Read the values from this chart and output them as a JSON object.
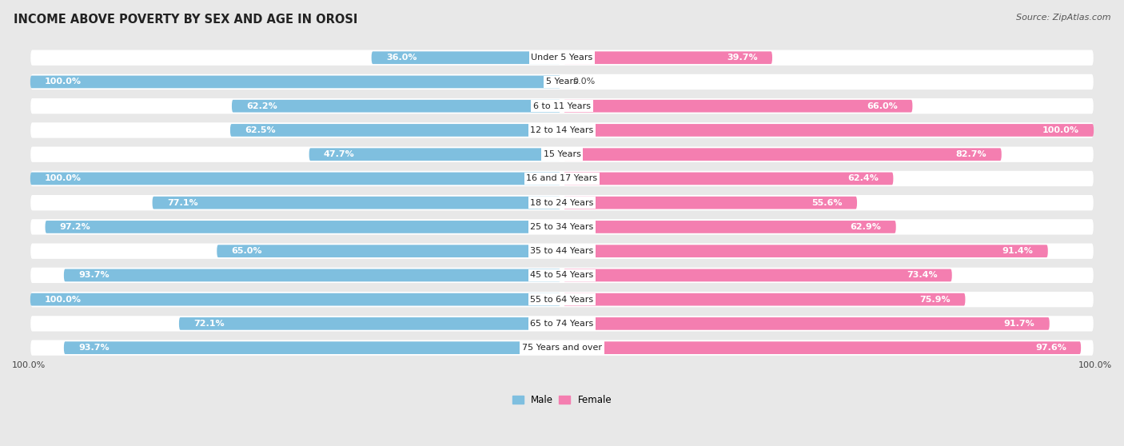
{
  "title": "INCOME ABOVE POVERTY BY SEX AND AGE IN OROSI",
  "source": "Source: ZipAtlas.com",
  "categories": [
    "Under 5 Years",
    "5 Years",
    "6 to 11 Years",
    "12 to 14 Years",
    "15 Years",
    "16 and 17 Years",
    "18 to 24 Years",
    "25 to 34 Years",
    "35 to 44 Years",
    "45 to 54 Years",
    "55 to 64 Years",
    "65 to 74 Years",
    "75 Years and over"
  ],
  "male_values": [
    36.0,
    100.0,
    62.2,
    62.5,
    47.7,
    100.0,
    77.1,
    97.2,
    65.0,
    93.7,
    100.0,
    72.1,
    93.7
  ],
  "female_values": [
    39.7,
    0.0,
    66.0,
    100.0,
    82.7,
    62.4,
    55.6,
    62.9,
    91.4,
    73.4,
    75.9,
    91.7,
    97.6
  ],
  "male_color": "#7fbfdf",
  "female_color": "#f47eb0",
  "male_label": "Male",
  "female_label": "Female",
  "bg_color": "#e8e8e8",
  "row_bg_color": "#ffffff",
  "bar_track_color": "#e0e0e0",
  "title_fontsize": 10.5,
  "value_fontsize": 8.0,
  "cat_fontsize": 8.0,
  "legend_fontsize": 8.5,
  "source_fontsize": 8.0,
  "max_value": 100.0
}
